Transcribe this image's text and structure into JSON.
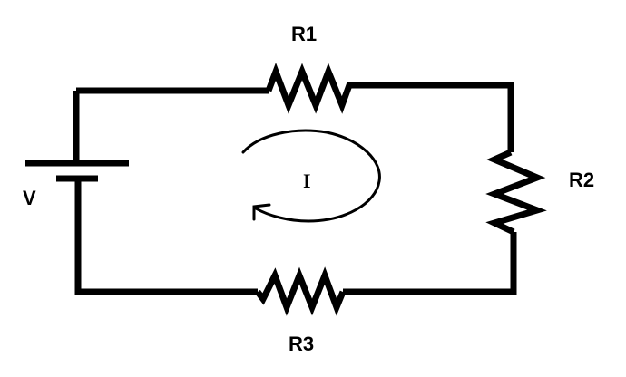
{
  "diagram": {
    "labels": {
      "r1": "R1",
      "r2": "R2",
      "r3": "R3",
      "voltage": "V",
      "current": "I"
    },
    "colors": {
      "wire": "#000000",
      "background": "#ffffff"
    },
    "current_direction": "clockwise"
  }
}
